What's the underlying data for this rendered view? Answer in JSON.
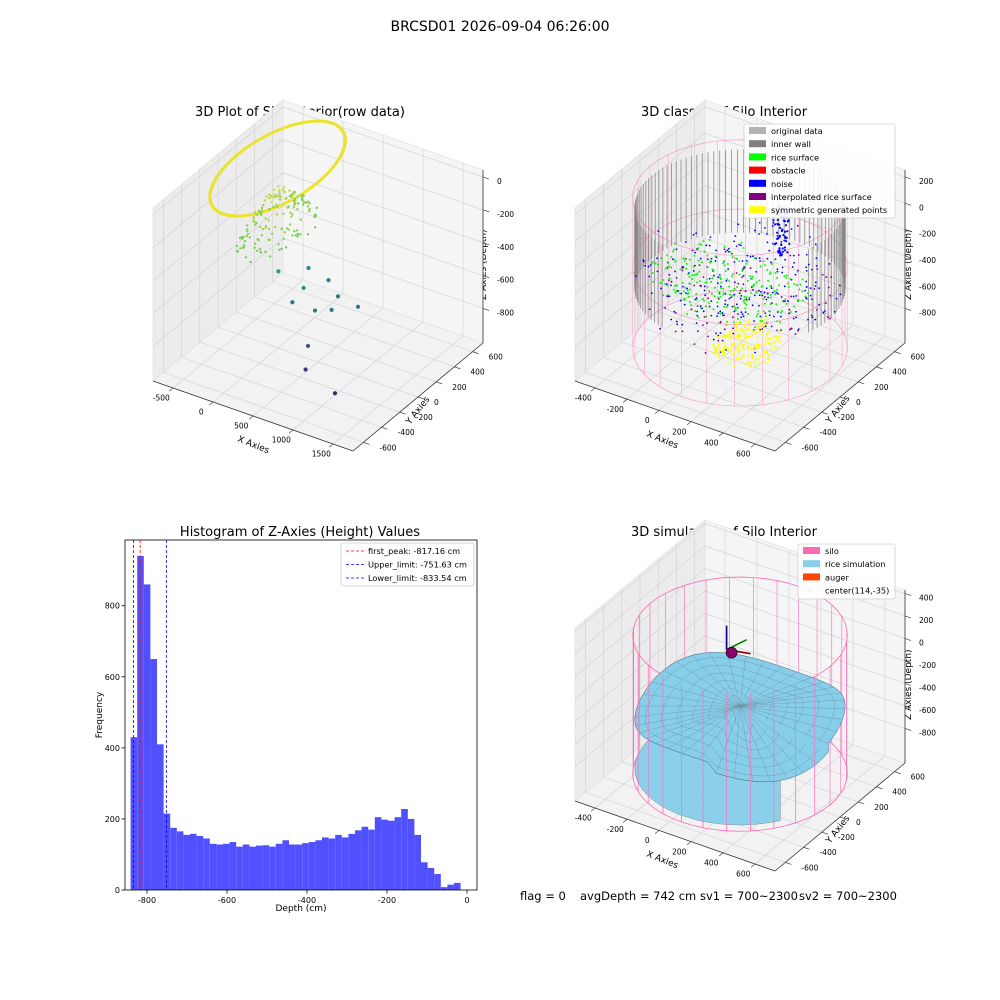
{
  "figure": {
    "suptitle": "BRCSD01 2026-09-04 06:26:00",
    "footer": {
      "flag": "flag = 0",
      "avg_depth": "avgDepth = 742 cm",
      "sv1": "sv1 = 700~2300",
      "sv2": "sv2 = 700~2300"
    }
  },
  "colors": {
    "original_data": "#b3b3b3",
    "inner_wall": "#808080",
    "rice_surface": "#00ff00",
    "obstacle": "#ff0000",
    "noise": "#0000ff",
    "interpolated_rice_surface": "#800080",
    "symmetric_generated_points": "#ffff00",
    "silo": "#ff69b4",
    "rice_simulation": "#87ceeb",
    "auger": "#ff4500",
    "hist_bar": "#5050ff",
    "peak_line": "#ff0000",
    "limit_line": "#0000ff"
  },
  "chart_data": [
    {
      "type": "scatter",
      "projection": "3d",
      "title": "3D Plot of Silo Interior(row data)",
      "xlabel": "X Axies",
      "ylabel": "Y Axies",
      "zlabel": "Z Axies (Depth)",
      "xticks": [
        "-500",
        "0",
        "500",
        "1000",
        "1500"
      ],
      "yticks": [
        "-600",
        "-400",
        "-200",
        "0",
        "200",
        "400",
        "600"
      ],
      "zticks": [
        "0",
        "-200",
        "-400",
        "-600",
        "-800"
      ],
      "colormap": "viridis",
      "grid": true
    },
    {
      "type": "scatter",
      "projection": "3d",
      "title": "3D classify of Silo Interior",
      "xlabel": "X Axies",
      "ylabel": "Y Axies",
      "zlabel": "Z Axies (Depth)",
      "xticks": [
        "-400",
        "-200",
        "0",
        "200",
        "400",
        "600"
      ],
      "yticks": [
        "-600",
        "-400",
        "-200",
        "0",
        "200",
        "400",
        "600"
      ],
      "zticks": [
        "200",
        "0",
        "-200",
        "-400",
        "-600",
        "-800"
      ],
      "legend": [
        "original data",
        "inner wall",
        "rice surface",
        "obstacle",
        "noise",
        "interpolated rice surface",
        "symmetric generated points"
      ],
      "legend_loc": "upper right",
      "grid": true
    },
    {
      "type": "bar",
      "title": "Histogram of Z-Axies (Height) Values",
      "xlabel": "Depth (cm)",
      "ylabel": "Frequency",
      "xlim": [
        -855,
        25
      ],
      "ylim": [
        0,
        985
      ],
      "xticks": [
        -800,
        -600,
        -400,
        -200,
        0
      ],
      "yticks": [
        0,
        200,
        400,
        600,
        800
      ],
      "bin_width": 16.5,
      "bins_start": -841,
      "values": [
        430,
        940,
        860,
        650,
        410,
        215,
        175,
        165,
        155,
        158,
        152,
        145,
        130,
        128,
        130,
        135,
        122,
        128,
        122,
        125,
        126,
        122,
        130,
        140,
        128,
        128,
        132,
        135,
        140,
        148,
        145,
        155,
        148,
        158,
        168,
        178,
        170,
        205,
        198,
        195,
        205,
        228,
        200,
        155,
        78,
        62,
        45,
        8,
        15,
        20
      ],
      "vlines": [
        {
          "label": "first_peak: -817.16 cm",
          "x": -817.16,
          "kind": "peak"
        },
        {
          "label": "Upper_limit: -751.63 cm",
          "x": -751.63,
          "kind": "limit"
        },
        {
          "label": "Lower_limit: -833.54 cm",
          "x": -833.54,
          "kind": "limit"
        }
      ],
      "legend_loc": "upper right"
    },
    {
      "type": "surface",
      "projection": "3d",
      "title": "3D simulation of Silo Interior",
      "xlabel": "X Axies",
      "ylabel": "Y Axies",
      "zlabel": "Z Axies (Depth)",
      "xticks": [
        "-400",
        "-200",
        "0",
        "200",
        "400",
        "600"
      ],
      "yticks": [
        "-600",
        "-400",
        "-200",
        "0",
        "200",
        "400",
        "600"
      ],
      "zticks": [
        "400",
        "200",
        "0",
        "-200",
        "-400",
        "-600",
        "-800"
      ],
      "legend": [
        "silo",
        "rice simulation",
        "auger",
        "center(114,-35)"
      ],
      "legend_loc": "upper right",
      "grid": true
    }
  ]
}
